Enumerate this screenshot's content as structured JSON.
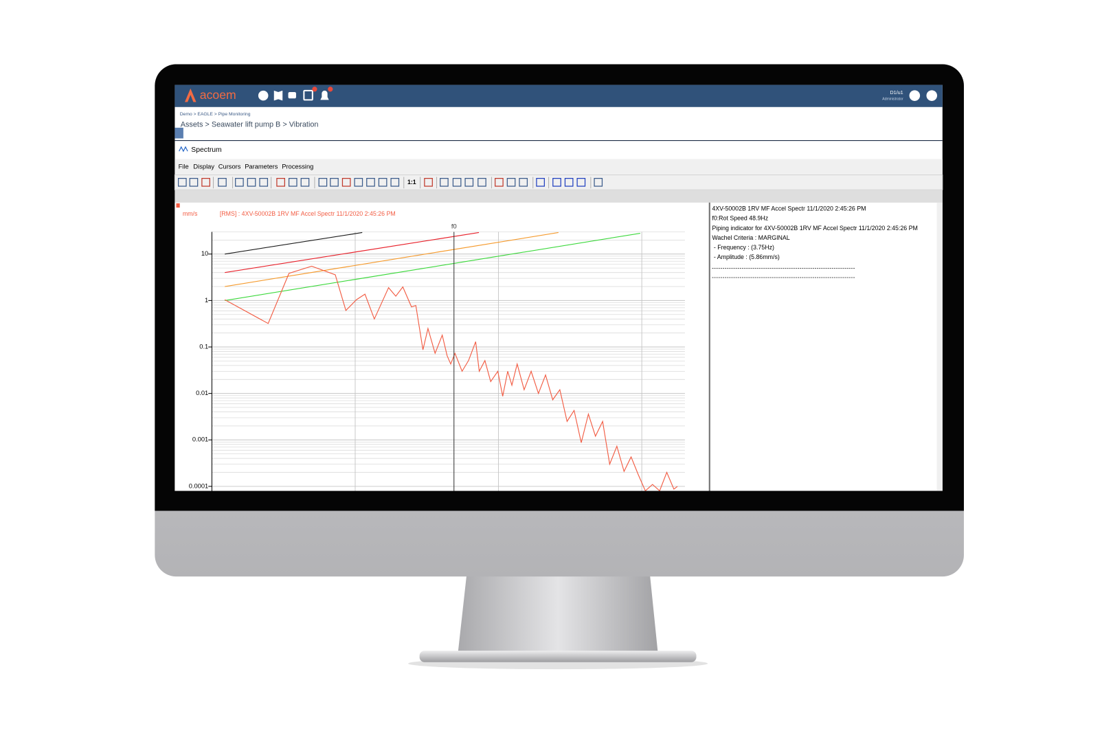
{
  "header": {
    "logo": "acoem",
    "user": "D1/u1",
    "role": "Administrator"
  },
  "breadcrumb": {
    "path": "Demo > EAGLE > Pipe Monitoring",
    "title": "Assets > Seawater lift pump B > Vibration"
  },
  "window": {
    "title": "Spectrum",
    "menu": [
      "File",
      "Display",
      "Cursors",
      "Parameters",
      "Processing"
    ],
    "toolbar_text": "1:1"
  },
  "chart_data": {
    "type": "line",
    "title": "[RMS] : 4XV-50002B 1RV MF Accel Spectr 11/1/2020 2:45:26 PM",
    "ylabel": "mm/s",
    "log_x": true,
    "log_y": true,
    "xlim": [
      1,
      2000
    ],
    "ylim": [
      8e-05,
      30
    ],
    "yticks": [
      10,
      1,
      0.1,
      0.01,
      0.001,
      0.0001
    ],
    "x_grid": [
      10,
      100,
      1000
    ],
    "grid": true,
    "minor_grid": true,
    "cursor": {
      "label": "f0",
      "x": 48.9
    },
    "series": [
      {
        "color": "#1a1a1a",
        "x": [
          1.23,
          11.2
        ],
        "values": [
          10,
          29
        ]
      },
      {
        "color": "#e8202a",
        "x": [
          1.23,
          73
        ],
        "values": [
          4.0,
          29
        ]
      },
      {
        "color": "#f59a2c",
        "x": [
          1.23,
          262
        ],
        "values": [
          2.0,
          29
        ]
      },
      {
        "color": "#3ad83a",
        "x": [
          1.23,
          975
        ],
        "values": [
          1.0,
          28
        ]
      },
      {
        "color": "#f25c43",
        "x": [
          1.23,
          2.47,
          3.45,
          4.97,
          7.26,
          8.61,
          10.2,
          11.7,
          13.6,
          17.1,
          19.2,
          21.5,
          24.7,
          26.5,
          29.7,
          32.2,
          36.1,
          40.5,
          43.8,
          46.4,
          49.7,
          55.7,
          61.8,
          69.3,
          73.4,
          80.4,
          88.2,
          98.9,
          107,
          116,
          124,
          135,
          151,
          169,
          190,
          213,
          239,
          268,
          301,
          337,
          378,
          424,
          475,
          533,
          597,
          670,
          752,
          842,
          944,
          1059,
          1188,
          1332,
          1494,
          1675,
          1774
        ],
        "values": [
          1.04,
          0.32,
          3.84,
          5.48,
          3.58,
          0.61,
          1.04,
          1.37,
          0.4,
          1.89,
          1.24,
          1.96,
          0.73,
          0.78,
          0.087,
          0.25,
          0.073,
          0.18,
          0.065,
          0.043,
          0.073,
          0.03,
          0.051,
          0.13,
          0.03,
          0.051,
          0.018,
          0.03,
          0.0087,
          0.03,
          0.015,
          0.043,
          0.012,
          0.03,
          0.01,
          0.025,
          0.0073,
          0.012,
          0.0025,
          0.0043,
          0.00087,
          0.0036,
          0.0012,
          0.0025,
          0.0003,
          0.00073,
          0.00021,
          0.00043,
          0.00018,
          8e-05,
          0.00011,
          8e-05,
          0.0002,
          8.7e-05,
          0.0001
        ]
      }
    ]
  },
  "info_panel": {
    "lines": [
      "4XV-50002B 1RV MF Accel Spectr 11/1/2020 2:45:26 PM",
      "f0:Rot Speed 48.9Hz",
      "Piping indicator for 4XV-50002B 1RV MF Accel Spectr 11/1/2020 2:45:26 PM",
      "Wachel Criteria : MARGINAL",
      " - Frequency : (3.75Hz)",
      " - Amplitude : (5.86mm/s)"
    ]
  }
}
